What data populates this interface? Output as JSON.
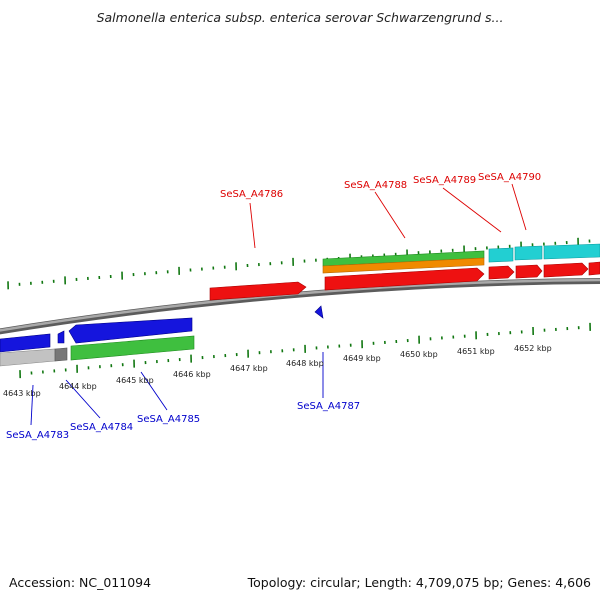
{
  "title": "Salmonella enterica subsp. enterica serovar Schwarzengrund s...",
  "footer": {
    "accession": "Accession: NC_011094",
    "topology": "Topology: circular; Length: 4,709,075 bp; Genes: 4,606"
  },
  "scale_labels": [
    "4643 kbp",
    "4644 kbp",
    "4645 kbp",
    "4646 kbp",
    "4647 kbp",
    "4648 kbp",
    "4649 kbp",
    "4650 kbp",
    "4651 kbp",
    "4652 kbp"
  ],
  "genes_forward": [
    "SeSA_A4786",
    "SeSA_A4788",
    "SeSA_A4789",
    "SeSA_A4790"
  ],
  "genes_reverse": [
    "SeSA_A4783",
    "SeSA_A4784",
    "SeSA_A4785",
    "SeSA_A4787"
  ],
  "colors": {
    "forward_label": "#dd0000",
    "reverse_label": "#0000cc",
    "tick": "#117711",
    "backbone": "#808080",
    "cds_forward": "#ee1111",
    "cds_reverse": "#1111dd",
    "gene_green": "#33bb33",
    "gene_orange": "#ee8800",
    "gene_cyan": "#11cccc",
    "gene_gray": "#bbbbbb"
  }
}
